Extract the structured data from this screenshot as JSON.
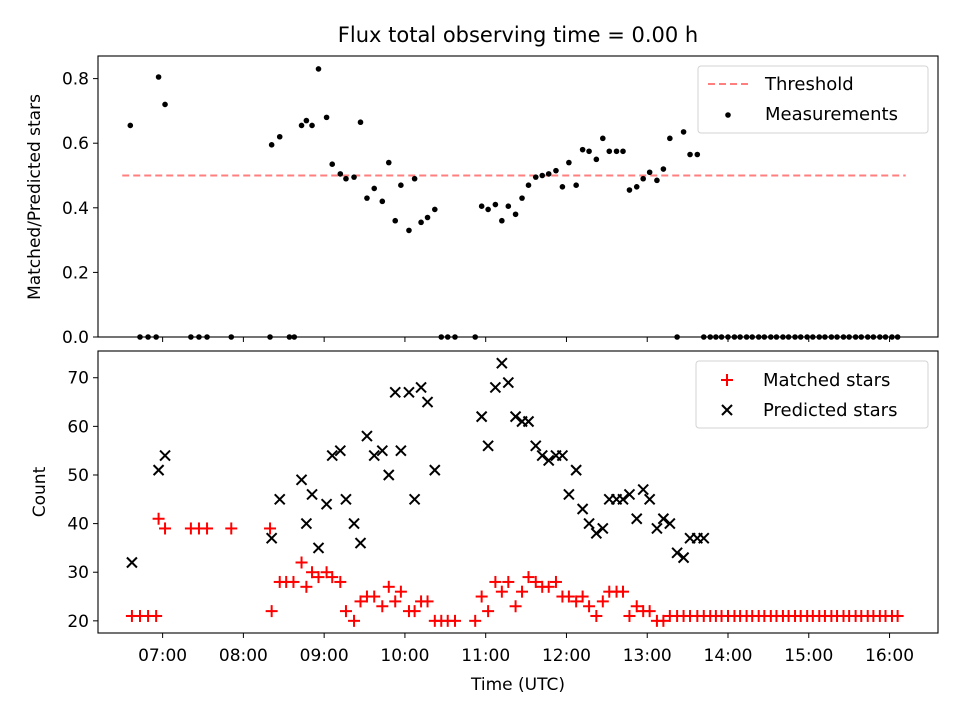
{
  "chart_data": [
    {
      "type": "scatter",
      "title": "Flux total observing time = 0.00 h",
      "ylabel": "Matched/Predicted stars",
      "ylim": [
        0,
        0.87
      ],
      "yticks": [
        "0.0",
        "0.2",
        "0.4",
        "0.6",
        "0.8"
      ],
      "ytick_values": [
        0,
        0.2,
        0.4,
        0.6,
        0.8
      ],
      "legend": {
        "position": "upper right",
        "entries": [
          "Threshold",
          "Measurements"
        ]
      },
      "threshold": {
        "name": "Threshold",
        "value": 0.5,
        "x": [
          6.5,
          16.2
        ],
        "color": "#ff7f7f",
        "style": "dashed"
      },
      "series": [
        {
          "name": "Measurements",
          "color": "#000000",
          "marker": "dot",
          "x": [
            6.6,
            6.72,
            6.82,
            6.92,
            6.95,
            7.03,
            7.35,
            7.45,
            7.55,
            7.85,
            8.33,
            8.35,
            8.45,
            8.57,
            8.63,
            8.72,
            8.78,
            8.85,
            8.93,
            9.03,
            9.1,
            9.2,
            9.27,
            9.37,
            9.45,
            9.53,
            9.62,
            9.72,
            9.8,
            9.88,
            9.95,
            10.05,
            10.12,
            10.2,
            10.28,
            10.37,
            10.45,
            10.53,
            10.62,
            10.87,
            10.95,
            11.03,
            11.12,
            11.2,
            11.28,
            11.37,
            11.45,
            11.53,
            11.62,
            11.7,
            11.78,
            11.87,
            11.95,
            12.03,
            12.12,
            12.2,
            12.28,
            12.37,
            12.45,
            12.53,
            12.62,
            12.7,
            12.78,
            12.87,
            12.95,
            13.03,
            13.12,
            13.2,
            13.28,
            13.37,
            13.45,
            13.53,
            13.62,
            13.7,
            13.78,
            13.85,
            13.92,
            14.0,
            14.08,
            14.15,
            14.23,
            14.3,
            14.38,
            14.45,
            14.53,
            14.6,
            14.68,
            14.75,
            14.83,
            14.9,
            14.98,
            15.05,
            15.13,
            15.2,
            15.28,
            15.35,
            15.43,
            15.5,
            15.58,
            15.65,
            15.73,
            15.8,
            15.88,
            15.95,
            16.03,
            16.1
          ],
          "y": [
            0.655,
            0,
            0,
            0,
            0.805,
            0.72,
            0,
            0,
            0,
            0,
            0,
            0.595,
            0.62,
            0,
            0,
            0.655,
            0.67,
            0.655,
            0.83,
            0.68,
            0.535,
            0.505,
            0.49,
            0.495,
            0.665,
            0.43,
            0.46,
            0.42,
            0.54,
            0.36,
            0.47,
            0.33,
            0.49,
            0.355,
            0.37,
            0.395,
            0,
            0,
            0,
            0,
            0.405,
            0.395,
            0.41,
            0.36,
            0.405,
            0.38,
            0.43,
            0.47,
            0.495,
            0.5,
            0.505,
            0.515,
            0.465,
            0.54,
            0.47,
            0.58,
            0.575,
            0.55,
            0.615,
            0.575,
            0.575,
            0.575,
            0.455,
            0.465,
            0.49,
            0.51,
            0.485,
            0.52,
            0.615,
            0,
            0.635,
            0.565,
            0.565,
            0,
            0,
            0,
            0,
            0,
            0,
            0,
            0,
            0,
            0,
            0,
            0,
            0,
            0,
            0,
            0,
            0,
            0,
            0,
            0,
            0,
            0,
            0,
            0,
            0,
            0,
            0,
            0,
            0,
            0,
            0,
            0,
            0
          ]
        }
      ]
    },
    {
      "type": "scatter",
      "xlabel": "Time (UTC)",
      "ylabel": "Count",
      "xlim": [
        6.2,
        16.6
      ],
      "ylim": [
        17.5,
        75.5
      ],
      "xticks": [
        "07:00",
        "08:00",
        "09:00",
        "10:00",
        "11:00",
        "12:00",
        "13:00",
        "14:00",
        "15:00",
        "16:00"
      ],
      "xtick_values": [
        7,
        8,
        9,
        10,
        11,
        12,
        13,
        14,
        15,
        16
      ],
      "yticks": [
        "20",
        "30",
        "40",
        "50",
        "60",
        "70"
      ],
      "ytick_values": [
        20,
        30,
        40,
        50,
        60,
        70
      ],
      "legend": {
        "position": "upper right",
        "entries": [
          "Matched stars",
          "Predicted stars"
        ]
      },
      "series": [
        {
          "name": "Matched stars",
          "color": "#ff0000",
          "marker": "plus",
          "x": [
            6.62,
            6.72,
            6.82,
            6.92,
            6.95,
            7.03,
            7.35,
            7.45,
            7.55,
            7.85,
            8.33,
            8.35,
            8.45,
            8.53,
            8.62,
            8.72,
            8.78,
            8.85,
            8.93,
            9.03,
            9.1,
            9.2,
            9.27,
            9.37,
            9.45,
            9.53,
            9.62,
            9.72,
            9.8,
            9.88,
            9.95,
            10.05,
            10.12,
            10.2,
            10.28,
            10.37,
            10.45,
            10.53,
            10.62,
            10.87,
            10.95,
            11.03,
            11.12,
            11.2,
            11.28,
            11.37,
            11.45,
            11.53,
            11.62,
            11.7,
            11.78,
            11.87,
            11.95,
            12.03,
            12.12,
            12.2,
            12.28,
            12.37,
            12.45,
            12.53,
            12.62,
            12.7,
            12.78,
            12.87,
            12.95,
            13.03,
            13.12,
            13.2,
            13.28,
            13.37,
            13.45,
            13.53,
            13.62,
            13.7,
            13.78,
            13.85,
            13.92,
            14.0,
            14.08,
            14.15,
            14.23,
            14.3,
            14.38,
            14.45,
            14.53,
            14.6,
            14.68,
            14.75,
            14.83,
            14.9,
            14.98,
            15.05,
            15.13,
            15.2,
            15.28,
            15.35,
            15.43,
            15.5,
            15.58,
            15.65,
            15.73,
            15.8,
            15.88,
            15.95,
            16.03,
            16.1
          ],
          "y": [
            21,
            21,
            21,
            21,
            41,
            39,
            39,
            39,
            39,
            39,
            39,
            22,
            28,
            28,
            28,
            32,
            27,
            30,
            29,
            30,
            29,
            28,
            22,
            20,
            24,
            25,
            25,
            23,
            27,
            24,
            26,
            22,
            22,
            24,
            24,
            20,
            20,
            20,
            20,
            20,
            25,
            22,
            28,
            26,
            28,
            23,
            26,
            29,
            28,
            27,
            27,
            28,
            25,
            25,
            24,
            25,
            23,
            21,
            24,
            26,
            26,
            26,
            21,
            23,
            22,
            22,
            20,
            20,
            21,
            21,
            21,
            21,
            21,
            21,
            21,
            21,
            21,
            21,
            21,
            21,
            21,
            21,
            21,
            21,
            21,
            21,
            21,
            21,
            21,
            21,
            21,
            21,
            21,
            21,
            21,
            21,
            21,
            21,
            21,
            21,
            21,
            21,
            21,
            21,
            21,
            21
          ]
        },
        {
          "name": "Predicted stars",
          "color": "#000000",
          "marker": "x",
          "x": [
            6.62,
            6.95,
            7.03,
            8.35,
            8.45,
            8.72,
            8.78,
            8.85,
            8.93,
            9.03,
            9.1,
            9.2,
            9.27,
            9.37,
            9.45,
            9.53,
            9.62,
            9.72,
            9.8,
            9.88,
            9.95,
            10.05,
            10.12,
            10.2,
            10.28,
            10.37,
            10.95,
            11.03,
            11.12,
            11.2,
            11.28,
            11.37,
            11.45,
            11.53,
            11.62,
            11.7,
            11.78,
            11.87,
            11.95,
            12.03,
            12.12,
            12.2,
            12.28,
            12.37,
            12.45,
            12.53,
            12.62,
            12.7,
            12.78,
            12.87,
            12.95,
            13.03,
            13.12,
            13.2,
            13.28,
            13.37,
            13.45,
            13.53,
            13.62,
            13.7
          ],
          "y": [
            32,
            51,
            54,
            37,
            45,
            49,
            40,
            46,
            35,
            44,
            54,
            55,
            45,
            40,
            36,
            58,
            54,
            55,
            50,
            67,
            55,
            67,
            45,
            68,
            65,
            51,
            62,
            56,
            68,
            73,
            69,
            62,
            61,
            61,
            56,
            54,
            53,
            54,
            54,
            46,
            51,
            43,
            40,
            38,
            39,
            45,
            45,
            45,
            46,
            41,
            47,
            45,
            39,
            41,
            40,
            34,
            33,
            37,
            37,
            37
          ]
        }
      ]
    }
  ]
}
